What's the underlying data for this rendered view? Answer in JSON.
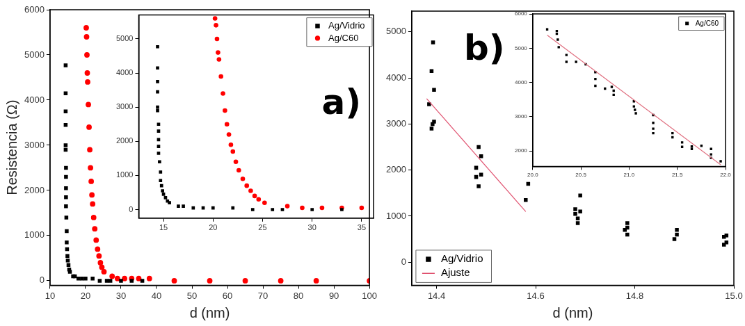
{
  "chart_data": [
    {
      "type": "scatter",
      "xlabel": "d (nm)",
      "ylabel": "Resistencia (Ω)",
      "xlim": [
        10,
        100
      ],
      "ylim": [
        -100,
        6000
      ],
      "xticks": [
        10,
        20,
        30,
        40,
        50,
        60,
        70,
        80,
        90,
        100
      ],
      "yticks": [
        0,
        1000,
        2000,
        3000,
        4000,
        5000,
        6000
      ],
      "grid": false,
      "annotations": [
        "a)"
      ],
      "series": [
        {
          "color": "#000000",
          "marker": "square",
          "x": [
            14.4,
            14.4,
            14.4,
            14.4,
            14.4,
            14.4,
            14.5,
            14.5,
            14.5,
            14.5,
            14.5,
            14.6,
            14.7,
            14.7,
            14.8,
            14.9,
            15.0,
            15.2,
            15.4,
            15.6,
            16.5,
            17,
            18,
            19,
            20,
            22,
            24,
            26,
            27,
            30,
            33,
            36
          ],
          "values": [
            4770,
            4150,
            3750,
            3450,
            3000,
            2900,
            2500,
            2300,
            2050,
            1850,
            1650,
            1400,
            1100,
            850,
            700,
            550,
            450,
            350,
            250,
            200,
            100,
            100,
            50,
            50,
            50,
            50,
            0,
            0,
            0,
            0,
            0,
            0
          ]
        },
        {
          "color": "#ff0000",
          "marker": "circle",
          "x": [
            20.2,
            20.3,
            20.4,
            20.5,
            20.6,
            20.8,
            21.0,
            21.2,
            21.4,
            21.6,
            21.8,
            22.0,
            22.3,
            22.6,
            23.0,
            23.4,
            23.8,
            24.2,
            24.6,
            25.2,
            27.5,
            29,
            31,
            33,
            35,
            38,
            45,
            55,
            65,
            75,
            85,
            100
          ],
          "values": [
            5600,
            5400,
            5000,
            4600,
            4400,
            3900,
            3400,
            2900,
            2500,
            2200,
            1900,
            1700,
            1400,
            1150,
            900,
            700,
            550,
            400,
            300,
            200,
            100,
            50,
            50,
            50,
            50,
            50,
            0,
            0,
            0,
            0,
            0,
            0
          ]
        }
      ]
    },
    {
      "type": "scatter",
      "xlim": [
        12.5,
        36.2
      ],
      "ylim": [
        -250,
        5700
      ],
      "xticks": [
        15,
        20,
        25,
        30,
        35
      ],
      "yticks": [
        0,
        1000,
        2000,
        3000,
        4000,
        5000
      ],
      "grid": false,
      "legend": "top right",
      "series": [
        {
          "name": "Ag/Vidrio",
          "color": "#000000",
          "marker": "square",
          "x": [
            14.4,
            14.4,
            14.4,
            14.4,
            14.4,
            14.4,
            14.5,
            14.5,
            14.5,
            14.5,
            14.5,
            14.6,
            14.7,
            14.7,
            14.8,
            14.9,
            15.0,
            15.2,
            15.4,
            15.6,
            16.5,
            17,
            18,
            19,
            20,
            22,
            24,
            26,
            27,
            30,
            33
          ],
          "values": [
            4770,
            4150,
            3750,
            3450,
            3000,
            2900,
            2500,
            2300,
            2050,
            1850,
            1650,
            1400,
            1100,
            850,
            700,
            550,
            450,
            350,
            250,
            200,
            100,
            100,
            50,
            50,
            50,
            50,
            0,
            0,
            0,
            0,
            0
          ]
        },
        {
          "name": "Ag/C60",
          "color": "#ff0000",
          "marker": "circle",
          "x": [
            20.2,
            20.3,
            20.4,
            20.5,
            20.6,
            20.8,
            21.0,
            21.2,
            21.4,
            21.6,
            21.8,
            22.0,
            22.3,
            22.6,
            23.0,
            23.4,
            23.8,
            24.2,
            24.6,
            25.2,
            27.5,
            29,
            31,
            33,
            35
          ],
          "values": [
            5600,
            5400,
            5000,
            4600,
            4400,
            3900,
            3400,
            2900,
            2500,
            2200,
            1900,
            1700,
            1400,
            1150,
            900,
            700,
            550,
            400,
            300,
            200,
            100,
            50,
            50,
            50,
            50
          ]
        }
      ]
    },
    {
      "type": "scatter",
      "xlabel": "d (nm)",
      "xlim": [
        14.35,
        15
      ],
      "ylim": [
        -500,
        5450
      ],
      "xticks": [
        {
          "value": 14.4,
          "label": "14.4"
        },
        {
          "value": 14.6,
          "label": "14.6"
        },
        {
          "value": 14.8,
          "label": "14.8"
        },
        {
          "value": 15,
          "label": "15.0"
        }
      ],
      "yticks": [
        0,
        1000,
        2000,
        3000,
        4000,
        5000
      ],
      "grid": false,
      "legend": "bottom left",
      "annotations": [
        "b)"
      ],
      "series": [
        {
          "name": "Ag/Vidrio",
          "color": "#000000",
          "marker": "square",
          "x": [
            14.385,
            14.39,
            14.392,
            14.395,
            14.39,
            14.393,
            14.395,
            14.48,
            14.48,
            14.485,
            14.485,
            14.49,
            14.49,
            14.58,
            14.585,
            14.68,
            14.68,
            14.685,
            14.685,
            14.69,
            14.69,
            14.78,
            14.785,
            14.785,
            14.785,
            14.88,
            14.885,
            14.885,
            14.98,
            14.98,
            14.985,
            14.985
          ],
          "values": [
            3430,
            2900,
            3000,
            3050,
            4150,
            4770,
            3740,
            2050,
            1850,
            2500,
            1650,
            1900,
            2300,
            1350,
            1700,
            1150,
            1050,
            850,
            950,
            1100,
            1450,
            700,
            600,
            850,
            750,
            500,
            700,
            600,
            550,
            380,
            430,
            580
          ]
        },
        {
          "name": "Ajuste",
          "type": "line",
          "color": "#e0506e",
          "marker": "none",
          "x": [
            14.38,
            14.58
          ],
          "values": [
            3550,
            1100
          ]
        }
      ]
    },
    {
      "type": "scatter",
      "xlim": [
        20,
        22
      ],
      "ylim": [
        1550,
        6000
      ],
      "xticks": [
        {
          "value": 20,
          "label": "20.0"
        },
        {
          "value": 20.5,
          "label": "20.5"
        },
        {
          "value": 21,
          "label": "21.0"
        },
        {
          "value": 21.5,
          "label": "21.5"
        },
        {
          "value": 22,
          "label": "22.0"
        }
      ],
      "yticks": [
        2000,
        3000,
        4000,
        5000,
        6000
      ],
      "grid": false,
      "legend": "top right",
      "series": [
        {
          "name": "Ag/C60",
          "color": "#000000",
          "marker": "square",
          "x": [
            20.15,
            20.25,
            20.25,
            20.26,
            20.27,
            20.35,
            20.35,
            20.45,
            20.55,
            20.65,
            20.65,
            20.65,
            20.75,
            20.82,
            20.84,
            20.84,
            21.05,
            21.05,
            21.06,
            21.07,
            21.25,
            21.25,
            21.25,
            21.25,
            21.45,
            21.45,
            21.55,
            21.55,
            21.65,
            21.65,
            21.75,
            21.85,
            21.85,
            21.85,
            21.95
          ],
          "values": [
            5550,
            5500,
            5420,
            5250,
            5030,
            4800,
            4600,
            4600,
            4530,
            4300,
            4100,
            3900,
            3820,
            3870,
            3760,
            3640,
            3450,
            3300,
            3200,
            3100,
            3050,
            2820,
            2650,
            2520,
            2520,
            2400,
            2250,
            2120,
            2130,
            2060,
            2150,
            2060,
            1900,
            1800,
            1700
          ]
        },
        {
          "type": "line",
          "color": "#e07080",
          "marker": "none",
          "x": [
            20.15,
            21.95
          ],
          "values": [
            5380,
            1600
          ]
        }
      ]
    }
  ]
}
